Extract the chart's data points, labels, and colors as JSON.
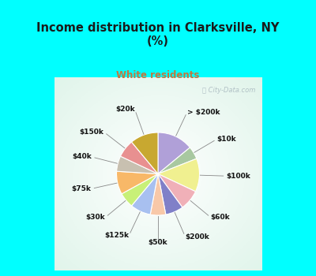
{
  "title": "Income distribution in Clarksville, NY\n(%)",
  "subtitle": "White residents",
  "title_color": "#1a1a1a",
  "subtitle_color": "#c07840",
  "bg_cyan": "#00ffff",
  "slices": [
    {
      "label": "> $200k",
      "value": 14,
      "color": "#b0a0d8"
    },
    {
      "label": "$10k",
      "value": 5,
      "color": "#a8c8a0"
    },
    {
      "label": "$100k",
      "value": 13,
      "color": "#f0f090"
    },
    {
      "label": "$60k",
      "value": 8,
      "color": "#f0b0b8"
    },
    {
      "label": "$200k",
      "value": 7,
      "color": "#8080c8"
    },
    {
      "label": "$50k",
      "value": 6,
      "color": "#f8c8a8"
    },
    {
      "label": "$125k",
      "value": 8,
      "color": "#a8c0f0"
    },
    {
      "label": "$30k",
      "value": 6,
      "color": "#c8f078"
    },
    {
      "label": "$75k",
      "value": 9,
      "color": "#f8b868"
    },
    {
      "label": "$40k",
      "value": 6,
      "color": "#c8c0b0"
    },
    {
      "label": "$150k",
      "value": 7,
      "color": "#e89090"
    },
    {
      "label": "$20k",
      "value": 11,
      "color": "#c8a830"
    }
  ],
  "watermark": "ⓘ City-Data.com"
}
